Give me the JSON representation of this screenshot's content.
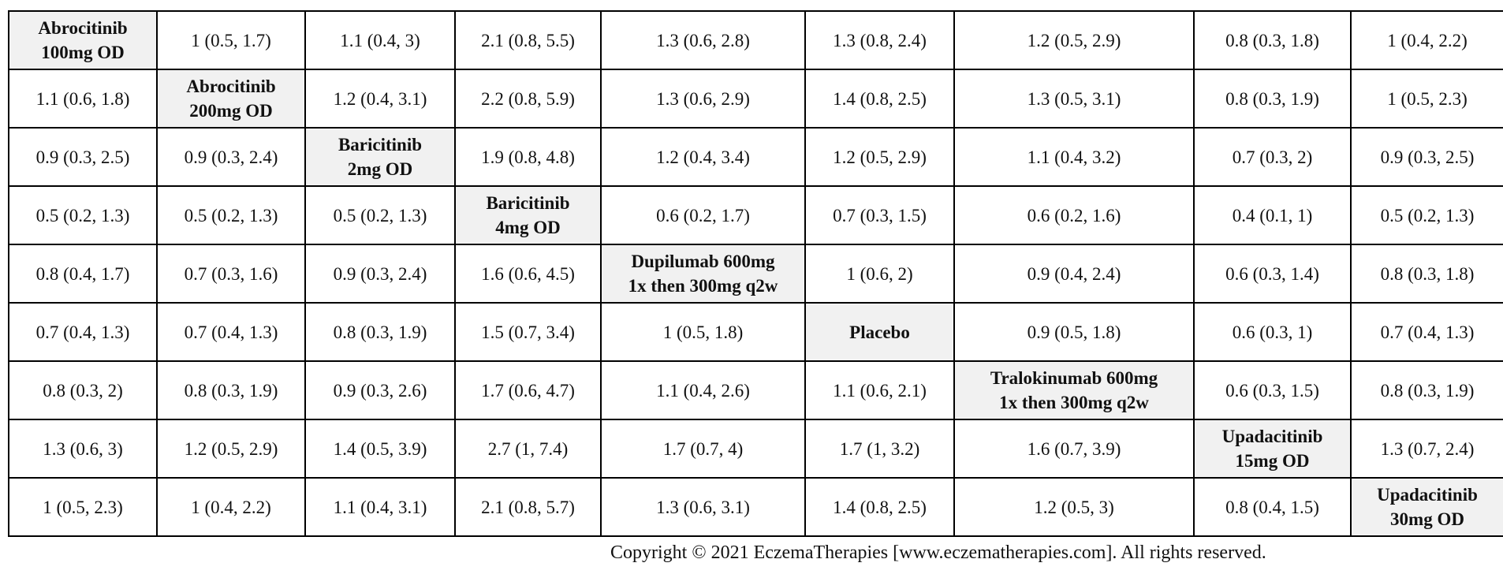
{
  "table": {
    "rows": [
      {
        "cells": [
          "Abrocitinib\n100mg OD",
          "1 (0.5, 1.7)",
          "1.1 (0.4, 3)",
          "2.1 (0.8, 5.5)",
          "1.3 (0.6, 2.8)",
          "1.3 (0.8, 2.4)",
          "1.2 (0.5, 2.9)",
          "0.8 (0.3, 1.8)",
          "1 (0.4, 2.2)"
        ]
      },
      {
        "cells": [
          "1.1 (0.6, 1.8)",
          "Abrocitinib\n200mg OD",
          "1.2 (0.4, 3.1)",
          "2.2 (0.8, 5.9)",
          "1.3 (0.6, 2.9)",
          "1.4 (0.8, 2.5)",
          "1.3 (0.5, 3.1)",
          "0.8 (0.3, 1.9)",
          "1 (0.5, 2.3)"
        ]
      },
      {
        "cells": [
          "0.9 (0.3, 2.5)",
          "0.9 (0.3, 2.4)",
          "Baricitinib\n2mg OD",
          "1.9 (0.8, 4.8)",
          "1.2 (0.4, 3.4)",
          "1.2 (0.5, 2.9)",
          "1.1 (0.4, 3.2)",
          "0.7 (0.3, 2)",
          "0.9 (0.3, 2.5)"
        ]
      },
      {
        "cells": [
          "0.5 (0.2, 1.3)",
          "0.5 (0.2, 1.3)",
          "0.5 (0.2, 1.3)",
          "Baricitinib\n4mg OD",
          "0.6 (0.2, 1.7)",
          "0.7 (0.3, 1.5)",
          "0.6 (0.2, 1.6)",
          "0.4 (0.1, 1)",
          "0.5 (0.2, 1.3)"
        ]
      },
      {
        "cells": [
          "0.8 (0.4, 1.7)",
          "0.7 (0.3, 1.6)",
          "0.9 (0.3, 2.4)",
          "1.6 (0.6, 4.5)",
          "Dupilumab 600mg\n1x then 300mg q2w",
          "1 (0.6, 2)",
          "0.9 (0.4, 2.4)",
          "0.6 (0.3, 1.4)",
          "0.8 (0.3, 1.8)"
        ]
      },
      {
        "cells": [
          "0.7 (0.4, 1.3)",
          "0.7 (0.4, 1.3)",
          "0.8 (0.3, 1.9)",
          "1.5 (0.7, 3.4)",
          "1 (0.5, 1.8)",
          "Placebo",
          "0.9 (0.5, 1.8)",
          "0.6 (0.3, 1)",
          "0.7 (0.4, 1.3)"
        ]
      },
      {
        "cells": [
          "0.8 (0.3, 2)",
          "0.8 (0.3, 1.9)",
          "0.9 (0.3, 2.6)",
          "1.7 (0.6, 4.7)",
          "1.1 (0.4, 2.6)",
          "1.1 (0.6, 2.1)",
          "Tralokinumab 600mg\n1x then 300mg q2w",
          "0.6 (0.3, 1.5)",
          "0.8 (0.3, 1.9)"
        ]
      },
      {
        "cells": [
          "1.3 (0.6, 3)",
          "1.2 (0.5, 2.9)",
          "1.4 (0.5, 3.9)",
          "2.7 (1, 7.4)",
          "1.7 (0.7, 4)",
          "1.7 (1, 3.2)",
          "1.6 (0.7, 3.9)",
          "Upadacitinib\n15mg OD",
          "1.3 (0.7, 2.4)"
        ]
      },
      {
        "cells": [
          "1 (0.5, 2.3)",
          "1 (0.4, 2.2)",
          "1.1 (0.4, 3.1)",
          "2.1 (0.8, 5.7)",
          "1.3 (0.6, 3.1)",
          "1.4 (0.8, 2.5)",
          "1.2 (0.5, 3)",
          "0.8 (0.4, 1.5)",
          "Upadacitinib\n30mg OD"
        ]
      }
    ]
  },
  "footer": {
    "copyright": "Copyright © 2021 EczemaTherapies [www.eczematherapies.com]. All rights reserved."
  },
  "colors": {
    "diagonal_background": "#f1f1f1",
    "border": "#000000"
  }
}
